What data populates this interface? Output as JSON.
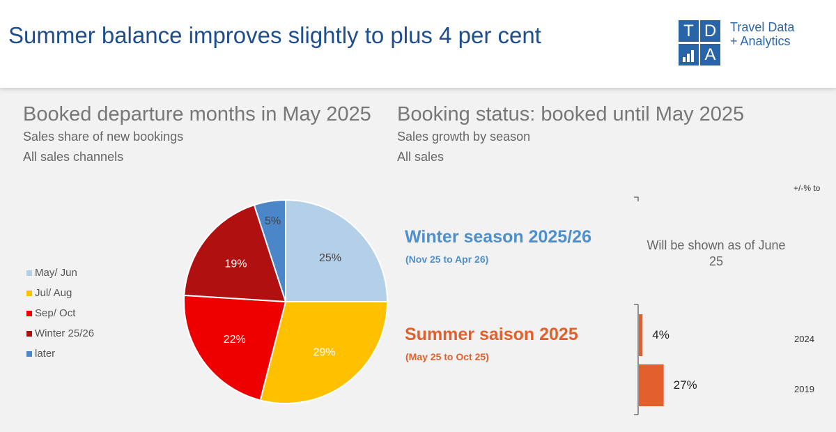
{
  "header": {
    "title": "Summer balance improves slightly to plus 4 per cent",
    "logo": {
      "letters": [
        "T",
        "D",
        "",
        "A"
      ],
      "line1": "Travel Data",
      "line2": "+ Analytics"
    }
  },
  "left_panel": {
    "title": "Booked departure months in May 2025",
    "subtitle": "Sales share of new bookings",
    "scope": "All sales channels"
  },
  "right_panel": {
    "title": "Booking status: booked until May 2025",
    "subtitle": "Sales growth by season",
    "scope": "All sales",
    "axis_note": "+/-% to",
    "winter": {
      "title": "Winter season 2025/26",
      "range": "(Nov 25 to Apr 26)",
      "note": "Will be shown as of June 25"
    },
    "summer": {
      "title": "Summer saison 2025",
      "range": "(May 25 to Oct 25)"
    }
  },
  "colors": {
    "header_title": "#1f4e8c",
    "logo_blue": "#2a64a8",
    "winter_accent": "#4e8fcc",
    "summer_accent": "#e35f2b"
  },
  "chart_data": [
    {
      "type": "pie",
      "title": "Booked departure months in May 2025",
      "legend_position": "left",
      "labels": [
        "May/ Jun",
        "Jul/ Aug",
        "Sep/ Oct",
        "Winter 25/26",
        "later"
      ],
      "values": [
        25,
        29,
        22,
        19,
        5
      ],
      "value_labels": [
        "25%",
        "29%",
        "22%",
        "19%",
        "5%"
      ],
      "colors": [
        "#b4cfe8",
        "#ffc000",
        "#ee0000",
        "#b01010",
        "#4a86c8"
      ]
    },
    {
      "type": "bar",
      "orientation": "horizontal",
      "title": "Summer saison 2025",
      "categories": [
        "2024",
        "2019"
      ],
      "values": [
        4,
        27
      ],
      "value_labels": [
        "4%",
        "27%"
      ],
      "color": "#e35f2b"
    }
  ]
}
